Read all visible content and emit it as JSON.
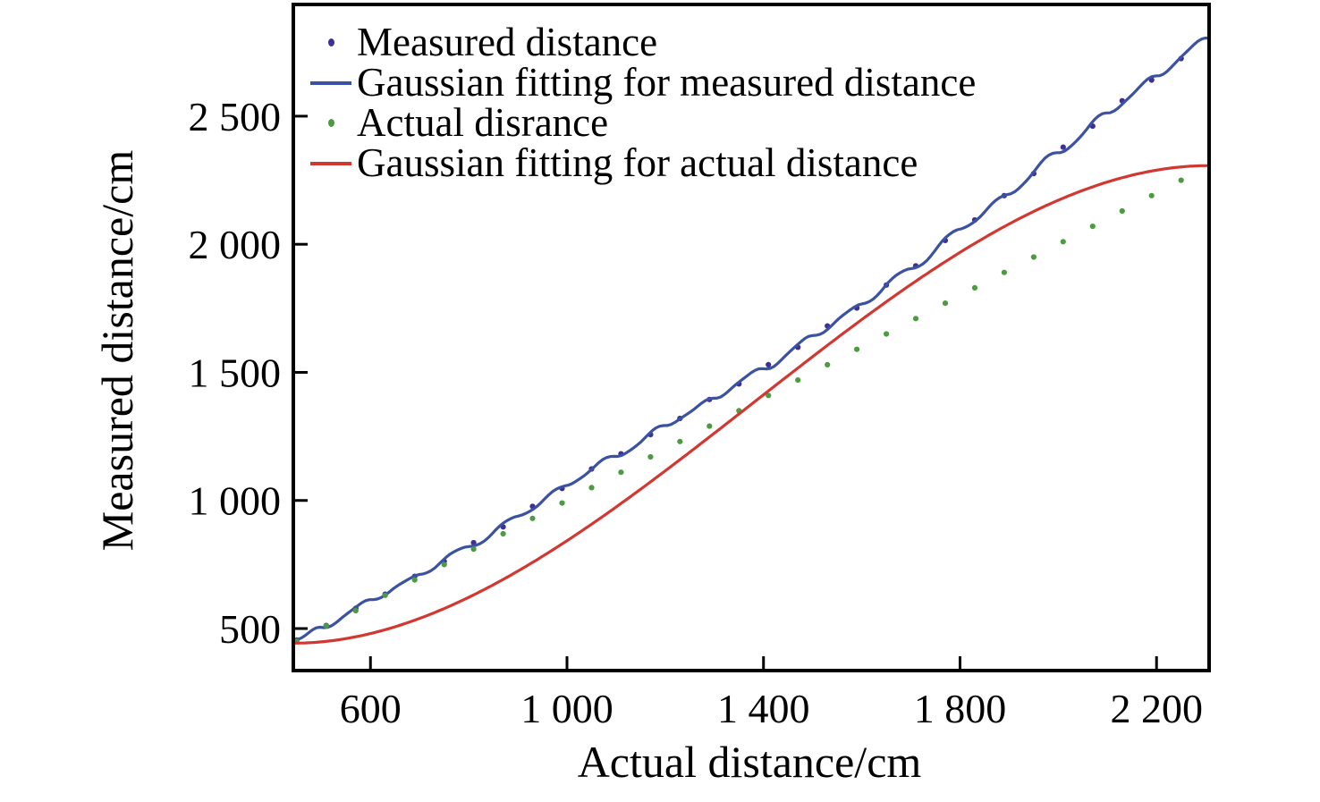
{
  "chart_data": {
    "type": "scatter",
    "title": "",
    "xlabel": "Actual distance/cm",
    "ylabel": "Measured distance/cm",
    "xlim": [
      443,
      2307
    ],
    "ylim": [
      336,
      2936
    ],
    "grid": false,
    "legend_position": "top-left",
    "axis_color": "#000000",
    "background_color": "#ffffff",
    "x_ticks": [
      {
        "value": 600,
        "label": "600"
      },
      {
        "value": 1000,
        "label": "1 000"
      },
      {
        "value": 1400,
        "label": "1 400"
      },
      {
        "value": 1800,
        "label": "1 800"
      },
      {
        "value": 2200,
        "label": "2 200"
      }
    ],
    "y_ticks": [
      {
        "value": 500,
        "label": "500"
      },
      {
        "value": 1000,
        "label": "1 000"
      },
      {
        "value": 1500,
        "label": "1 500"
      },
      {
        "value": 2000,
        "label": "2 000"
      },
      {
        "value": 2500,
        "label": "2 500"
      }
    ],
    "series": [
      {
        "name": "Measured distance",
        "type": "scatter",
        "marker": "dot",
        "color": "#3f2f96",
        "points": [
          [
            450,
            455
          ],
          [
            510,
            512
          ],
          [
            570,
            579
          ],
          [
            630,
            634
          ],
          [
            690,
            704
          ],
          [
            750,
            762
          ],
          [
            810,
            835
          ],
          [
            870,
            897
          ],
          [
            930,
            977
          ],
          [
            990,
            1047
          ],
          [
            1050,
            1123
          ],
          [
            1110,
            1182
          ],
          [
            1170,
            1257
          ],
          [
            1230,
            1320
          ],
          [
            1290,
            1394
          ],
          [
            1350,
            1455
          ],
          [
            1410,
            1530
          ],
          [
            1470,
            1598
          ],
          [
            1530,
            1681
          ],
          [
            1590,
            1751
          ],
          [
            1650,
            1841
          ],
          [
            1710,
            1916
          ],
          [
            1770,
            2015
          ],
          [
            1830,
            2095
          ],
          [
            1890,
            2190
          ],
          [
            1950,
            2276
          ],
          [
            2010,
            2379
          ],
          [
            2070,
            2461
          ],
          [
            2130,
            2560
          ],
          [
            2190,
            2641
          ],
          [
            2250,
            2725
          ]
        ]
      },
      {
        "name": "Gaussian fitting for measured distance",
        "type": "line",
        "color": "#3b52a3",
        "smooth": true,
        "wiggle": {
          "amp": 4,
          "wavelength": 150
        },
        "points": [
          [
            443,
            450
          ],
          [
            500,
            505
          ],
          [
            600,
            607
          ],
          [
            700,
            712
          ],
          [
            800,
            820
          ],
          [
            900,
            935
          ],
          [
            1000,
            1063
          ],
          [
            1100,
            1175
          ],
          [
            1200,
            1290
          ],
          [
            1300,
            1402
          ],
          [
            1400,
            1514
          ],
          [
            1500,
            1638
          ],
          [
            1600,
            1768
          ],
          [
            1700,
            1905
          ],
          [
            1800,
            2056
          ],
          [
            1900,
            2200
          ],
          [
            2000,
            2360
          ],
          [
            2100,
            2510
          ],
          [
            2200,
            2660
          ],
          [
            2307,
            2807
          ]
        ]
      },
      {
        "name": "Actual disrance",
        "type": "scatter",
        "marker": "dot",
        "color": "#4d9b41",
        "points": [
          [
            450,
            450
          ],
          [
            510,
            510
          ],
          [
            570,
            570
          ],
          [
            630,
            630
          ],
          [
            690,
            690
          ],
          [
            750,
            750
          ],
          [
            810,
            810
          ],
          [
            870,
            870
          ],
          [
            930,
            930
          ],
          [
            990,
            990
          ],
          [
            1050,
            1050
          ],
          [
            1110,
            1110
          ],
          [
            1170,
            1170
          ],
          [
            1230,
            1230
          ],
          [
            1290,
            1290
          ],
          [
            1350,
            1350
          ],
          [
            1410,
            1410
          ],
          [
            1470,
            1470
          ],
          [
            1530,
            1530
          ],
          [
            1590,
            1590
          ],
          [
            1650,
            1650
          ],
          [
            1710,
            1710
          ],
          [
            1770,
            1770
          ],
          [
            1830,
            1830
          ],
          [
            1890,
            1890
          ],
          [
            1950,
            1950
          ],
          [
            2010,
            2010
          ],
          [
            2070,
            2070
          ],
          [
            2130,
            2130
          ],
          [
            2190,
            2190
          ],
          [
            2250,
            2250
          ]
        ]
      },
      {
        "name": "Gaussian fitting for actual distance",
        "type": "line",
        "color": "#d23832",
        "smooth": false,
        "points": [
          [
            443,
            443
          ],
          [
            2307,
            2307
          ]
        ]
      }
    ]
  }
}
